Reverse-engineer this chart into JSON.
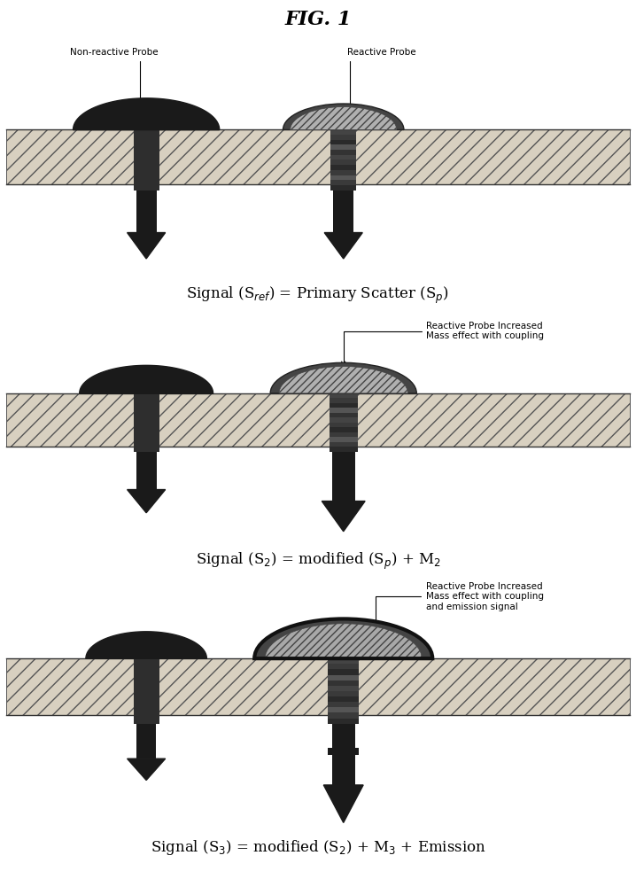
{
  "title": "FIG. 1",
  "bg_color": "#ffffff",
  "matrix_facecolor": "#d8d0c0",
  "matrix_edgecolor": "#555555",
  "probe_dark_color": "#1a1a1a",
  "probe_reactive_color": "#aaaaaa",
  "channel_dark": "#2a2a2a",
  "arrow_color": "#1a1a1a",
  "panel1": {
    "label_left": "Non-reactive Probe",
    "label_right": "Reactive Probe",
    "equation": "Signal (S$_{ref}$) = Primary Scatter (S$_{p}$)"
  },
  "panel2": {
    "annotation": "Reactive Probe Increased\nMass effect with coupling",
    "equation": "Signal (S$_{2}$) = modified (S$_{p}$) + M$_{2}$"
  },
  "panel3": {
    "annotation": "Reactive Probe Increased\nMass effect with coupling\nand emission signal",
    "equation": "Signal (S$_{3}$) = modified (S$_{2}$) + M$_{3}$ + Emission"
  }
}
